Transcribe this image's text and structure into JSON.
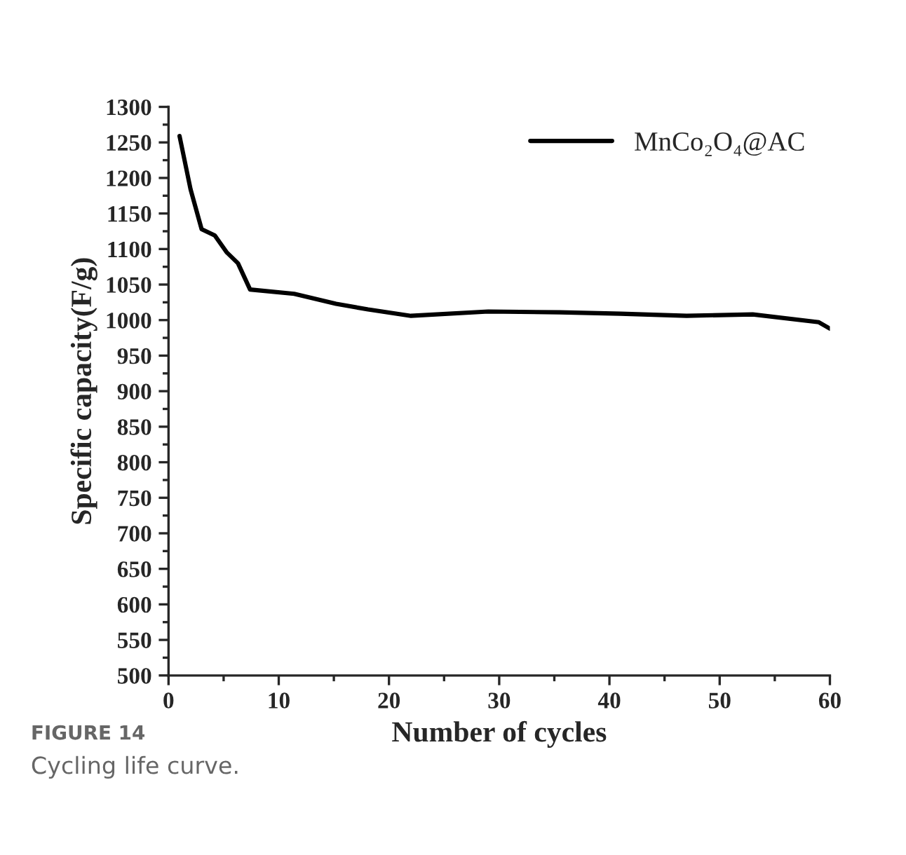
{
  "chart_data": {
    "type": "line",
    "xlabel": "Number of cycles",
    "ylabel": "Specific capacity(F/g)",
    "xlim": [
      0,
      60
    ],
    "xticks": [
      0,
      10,
      20,
      30,
      40,
      50,
      60
    ],
    "ylim": [
      500,
      1300
    ],
    "yticks": [
      500,
      550,
      600,
      650,
      700,
      750,
      800,
      850,
      900,
      950,
      1000,
      1050,
      1100,
      1150,
      1200,
      1250,
      1300
    ],
    "legend": "top right",
    "grid": false,
    "series": [
      {
        "name": "MnCo₂O₄@AC",
        "color": "#000000",
        "x": [
          1,
          2,
          3,
          4.2,
          5.3,
          6.3,
          7.4,
          11.4,
          15.2,
          18.1,
          22,
          29,
          35.5,
          41,
          47,
          53,
          59,
          60
        ],
        "values": [
          1259,
          1184,
          1128,
          1119,
          1095,
          1080,
          1043,
          1037,
          1023,
          1015,
          1006,
          1012,
          1011,
          1009,
          1006,
          1008,
          997,
          988
        ]
      }
    ],
    "annotations": [
      "FIGURE 14",
      "Cycling life curve."
    ]
  }
}
